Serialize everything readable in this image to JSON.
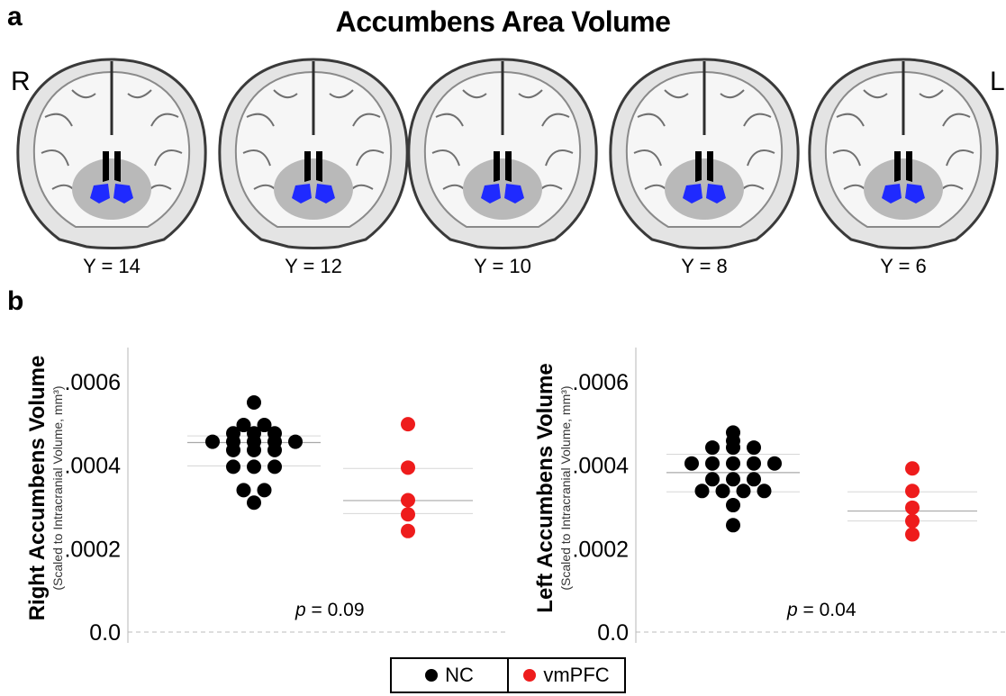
{
  "panel_a": {
    "letter": "a",
    "title": "Accumbens Area Volume",
    "side_right": "R",
    "side_left": "L",
    "slices": [
      "Y = 14",
      "Y = 12",
      "Y = 10",
      "Y = 8",
      "Y = 6"
    ],
    "highlight_color": "#1f2aff"
  },
  "panel_b": {
    "letter": "b",
    "legend": [
      {
        "label": "NC",
        "color": "#000000"
      },
      {
        "label": "vmPFC",
        "color": "#ee1c1c"
      }
    ]
  },
  "chart_data": [
    {
      "type": "scatter",
      "ylabel": "Right Accumbens Volume",
      "ylabel_sub": "(Scaled to Intracranial Volume, mm³)",
      "ylim": [
        0,
        0.00066
      ],
      "yticks": [
        ".0006",
        ".0004",
        ".0002",
        "0.0"
      ],
      "ytick_values": [
        0.0006,
        0.0004,
        0.0002,
        0
      ],
      "annotation_prefix": "p",
      "annotation_value": " = 0.09",
      "series": [
        {
          "name": "NC",
          "color": "#000000",
          "values": [
            0.00055,
            0.000496,
            0.000496,
            0.000476,
            0.000476,
            0.000476,
            0.000456,
            0.000456,
            0.000456,
            0.000456,
            0.000456,
            0.000436,
            0.000436,
            0.000436,
            0.000396,
            0.000396,
            0.000396,
            0.00034,
            0.00034,
            0.00031
          ],
          "mean_line": 0.000454,
          "band": [
            0.000398,
            0.00047
          ]
        },
        {
          "name": "vmPFC",
          "color": "#ee1c1c",
          "values": [
            0.000498,
            0.000394,
            0.000316,
            0.000282,
            0.000242
          ],
          "mean_line": 0.000315,
          "band": [
            0.000284,
            0.000392
          ]
        }
      ]
    },
    {
      "type": "scatter",
      "ylabel": "Left Accumbens Volume",
      "ylabel_sub": "(Scaled to Intracranial Volume, mm³)",
      "ylim": [
        0,
        0.00066
      ],
      "yticks": [
        ".0006",
        ".0004",
        ".0002",
        "0.0"
      ],
      "ytick_values": [
        0.0006,
        0.0004,
        0.0002,
        0
      ],
      "annotation_prefix": "p",
      "annotation_value": " = 0.04",
      "series": [
        {
          "name": "NC",
          "color": "#000000",
          "values": [
            0.000478,
            0.000458,
            0.000442,
            0.000442,
            0.000442,
            0.000404,
            0.000404,
            0.000404,
            0.000404,
            0.000404,
            0.000366,
            0.000366,
            0.000366,
            0.000338,
            0.000338,
            0.000338,
            0.000338,
            0.000304,
            0.000256
          ],
          "mean_line": 0.000382,
          "band": [
            0.000336,
            0.000426
          ]
        },
        {
          "name": "vmPFC",
          "color": "#ee1c1c",
          "values": [
            0.000392,
            0.000338,
            0.000298,
            0.000266,
            0.000234
          ],
          "mean_line": 0.00029,
          "band": [
            0.000266,
            0.000336
          ]
        }
      ]
    }
  ]
}
